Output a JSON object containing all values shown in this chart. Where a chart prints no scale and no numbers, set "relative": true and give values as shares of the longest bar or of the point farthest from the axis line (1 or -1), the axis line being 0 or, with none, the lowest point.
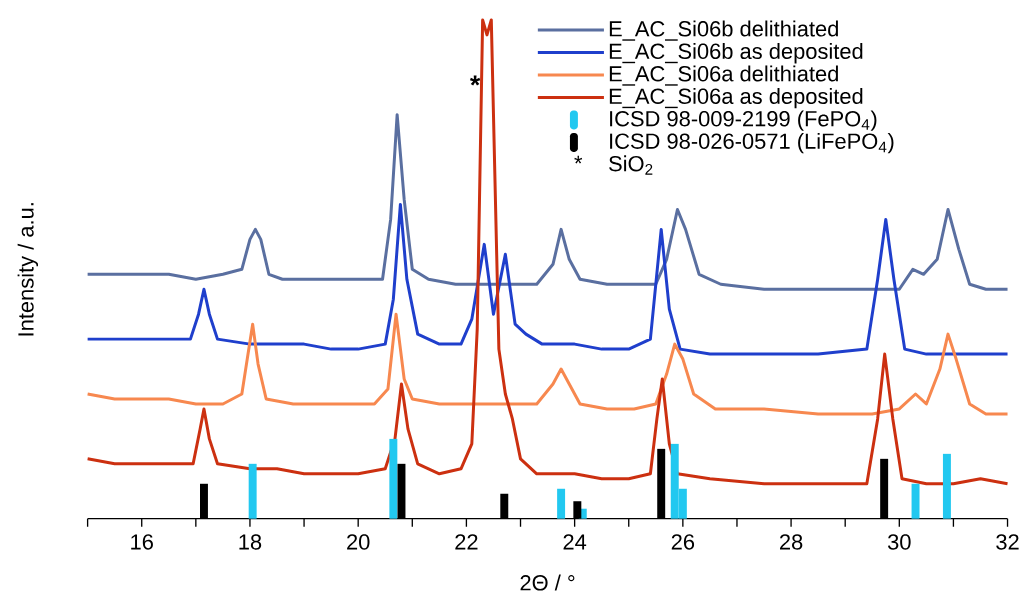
{
  "chart_data": {
    "type": "line",
    "relative": true,
    "xlabel": "2Θ / °",
    "ylabel": "Intensity / a.u.",
    "xlim": [
      15,
      32
    ],
    "xticks": [
      {
        "value": 15,
        "label": null
      },
      16,
      {
        "value": 17,
        "label": null
      },
      18,
      {
        "value": 19,
        "label": null
      },
      20,
      {
        "value": 21,
        "label": null
      },
      22,
      {
        "value": 23,
        "label": null
      },
      24,
      {
        "value": 25,
        "label": null
      },
      26,
      {
        "value": 27,
        "label": null
      },
      28,
      {
        "value": 29,
        "label": null
      },
      30,
      {
        "value": 31,
        "label": null
      },
      32
    ],
    "legend": "top right",
    "annotations": [
      {
        "text": "*",
        "x": 22.16,
        "y": 0.87
      },
      "*",
      "SiO$_{2}$"
    ],
    "series": [
      {
        "name": "E_AC_Si06b delithiated",
        "color": "#5a6fa0",
        "x": [
          15.0,
          15.5,
          16.0,
          16.5,
          17.0,
          17.5,
          17.85,
          18.0,
          18.1,
          18.2,
          18.35,
          18.6,
          19.0,
          19.5,
          20.0,
          20.45,
          20.6,
          20.72,
          20.85,
          21.0,
          21.3,
          21.8,
          22.3,
          22.8,
          23.3,
          23.6,
          23.75,
          23.9,
          24.1,
          24.6,
          25.1,
          25.5,
          25.7,
          25.9,
          26.05,
          26.3,
          26.7,
          27.5,
          28.5,
          29.5,
          30.0,
          30.25,
          30.45,
          30.7,
          30.9,
          31.1,
          31.3,
          31.6,
          32.0
        ],
        "values": [
          0.49,
          0.49,
          0.49,
          0.49,
          0.48,
          0.49,
          0.5,
          0.56,
          0.58,
          0.56,
          0.49,
          0.48,
          0.48,
          0.48,
          0.48,
          0.48,
          0.6,
          0.81,
          0.64,
          0.5,
          0.48,
          0.47,
          0.47,
          0.47,
          0.47,
          0.51,
          0.58,
          0.52,
          0.48,
          0.47,
          0.47,
          0.47,
          0.52,
          0.62,
          0.58,
          0.49,
          0.47,
          0.46,
          0.46,
          0.46,
          0.46,
          0.5,
          0.49,
          0.52,
          0.62,
          0.54,
          0.47,
          0.46,
          0.46
        ]
      },
      {
        "name": "E_AC_Si06b as deposited",
        "color": "#1f3fcc",
        "x": [
          15.0,
          15.5,
          16.0,
          16.5,
          16.9,
          17.05,
          17.15,
          17.25,
          17.4,
          18.0,
          18.5,
          19.0,
          19.5,
          20.0,
          20.5,
          20.65,
          20.78,
          20.9,
          21.1,
          21.5,
          21.9,
          22.1,
          22.33,
          22.5,
          22.72,
          22.9,
          23.1,
          23.4,
          24.0,
          24.5,
          25.0,
          25.4,
          25.6,
          25.75,
          25.95,
          26.5,
          27.5,
          28.5,
          29.4,
          29.6,
          29.75,
          29.9,
          30.1,
          30.5,
          31.0,
          31.5,
          32.0
        ],
        "values": [
          0.36,
          0.36,
          0.36,
          0.36,
          0.36,
          0.41,
          0.46,
          0.41,
          0.36,
          0.35,
          0.35,
          0.35,
          0.34,
          0.34,
          0.35,
          0.44,
          0.63,
          0.48,
          0.37,
          0.35,
          0.35,
          0.4,
          0.55,
          0.41,
          0.53,
          0.39,
          0.37,
          0.35,
          0.35,
          0.34,
          0.34,
          0.36,
          0.58,
          0.42,
          0.34,
          0.33,
          0.33,
          0.33,
          0.34,
          0.48,
          0.6,
          0.48,
          0.34,
          0.33,
          0.33,
          0.33,
          0.33
        ]
      },
      {
        "name": "E_AC_Si06a delithiated",
        "color": "#f7884f",
        "x": [
          15.0,
          15.5,
          16.0,
          16.5,
          17.0,
          17.5,
          17.85,
          17.95,
          18.05,
          18.15,
          18.3,
          18.8,
          19.5,
          20.3,
          20.55,
          20.7,
          20.85,
          21.0,
          21.5,
          22.0,
          22.8,
          23.3,
          23.6,
          23.75,
          23.9,
          24.1,
          24.6,
          25.1,
          25.5,
          25.7,
          25.85,
          26.0,
          26.2,
          26.6,
          27.5,
          28.5,
          29.5,
          30.0,
          30.3,
          30.5,
          30.75,
          30.9,
          31.05,
          31.3,
          31.6,
          32.0
        ],
        "values": [
          0.25,
          0.24,
          0.24,
          0.24,
          0.23,
          0.23,
          0.25,
          0.32,
          0.39,
          0.31,
          0.24,
          0.23,
          0.23,
          0.23,
          0.26,
          0.41,
          0.28,
          0.24,
          0.23,
          0.23,
          0.23,
          0.23,
          0.27,
          0.3,
          0.27,
          0.23,
          0.22,
          0.22,
          0.23,
          0.29,
          0.35,
          0.32,
          0.25,
          0.22,
          0.22,
          0.21,
          0.21,
          0.22,
          0.25,
          0.23,
          0.3,
          0.37,
          0.32,
          0.23,
          0.21,
          0.21
        ]
      },
      {
        "name": "E_AC_Si06a as deposited",
        "color": "#cc3010",
        "x": [
          15.0,
          15.5,
          16.0,
          16.5,
          16.95,
          17.08,
          17.15,
          17.25,
          17.4,
          18.0,
          18.5,
          19.0,
          19.5,
          20.0,
          20.5,
          20.68,
          20.8,
          20.92,
          21.1,
          21.5,
          21.9,
          22.1,
          22.2,
          22.3,
          22.38,
          22.46,
          22.6,
          22.72,
          22.85,
          23.0,
          23.3,
          24.0,
          24.5,
          25.0,
          25.4,
          25.52,
          25.62,
          25.75,
          25.9,
          26.5,
          27.5,
          28.5,
          29.4,
          29.6,
          29.73,
          29.88,
          30.05,
          30.5,
          31.0,
          31.5,
          32.0
        ],
        "values": [
          0.12,
          0.11,
          0.11,
          0.11,
          0.11,
          0.18,
          0.22,
          0.16,
          0.11,
          0.1,
          0.1,
          0.09,
          0.09,
          0.09,
          0.1,
          0.16,
          0.27,
          0.18,
          0.11,
          0.09,
          0.1,
          0.15,
          0.38,
          1.0,
          0.97,
          1.0,
          0.34,
          0.25,
          0.2,
          0.12,
          0.09,
          0.09,
          0.08,
          0.08,
          0.09,
          0.2,
          0.28,
          0.15,
          0.09,
          0.08,
          0.07,
          0.07,
          0.07,
          0.2,
          0.33,
          0.2,
          0.08,
          0.07,
          0.07,
          0.08,
          0.07
        ]
      },
      {
        "name": "ICSD 98-009-2199 (FePO$_{4}$)",
        "type": "bar",
        "color": "#22c8f0",
        "x": [
          18.05,
          20.65,
          23.75,
          24.15,
          25.85,
          26.0,
          30.3,
          30.88
        ],
        "values": [
          0.11,
          0.16,
          0.06,
          0.02,
          0.15,
          0.06,
          0.07,
          0.13
        ]
      },
      {
        "name": "ICSD 98-026-0571 (LiFePO$_{4}$)",
        "type": "bar",
        "color": "#000000",
        "x": [
          17.15,
          20.8,
          22.7,
          24.05,
          25.6,
          29.72
        ],
        "values": [
          0.07,
          0.11,
          0.05,
          0.035,
          0.14,
          0.12
        ]
      }
    ]
  }
}
